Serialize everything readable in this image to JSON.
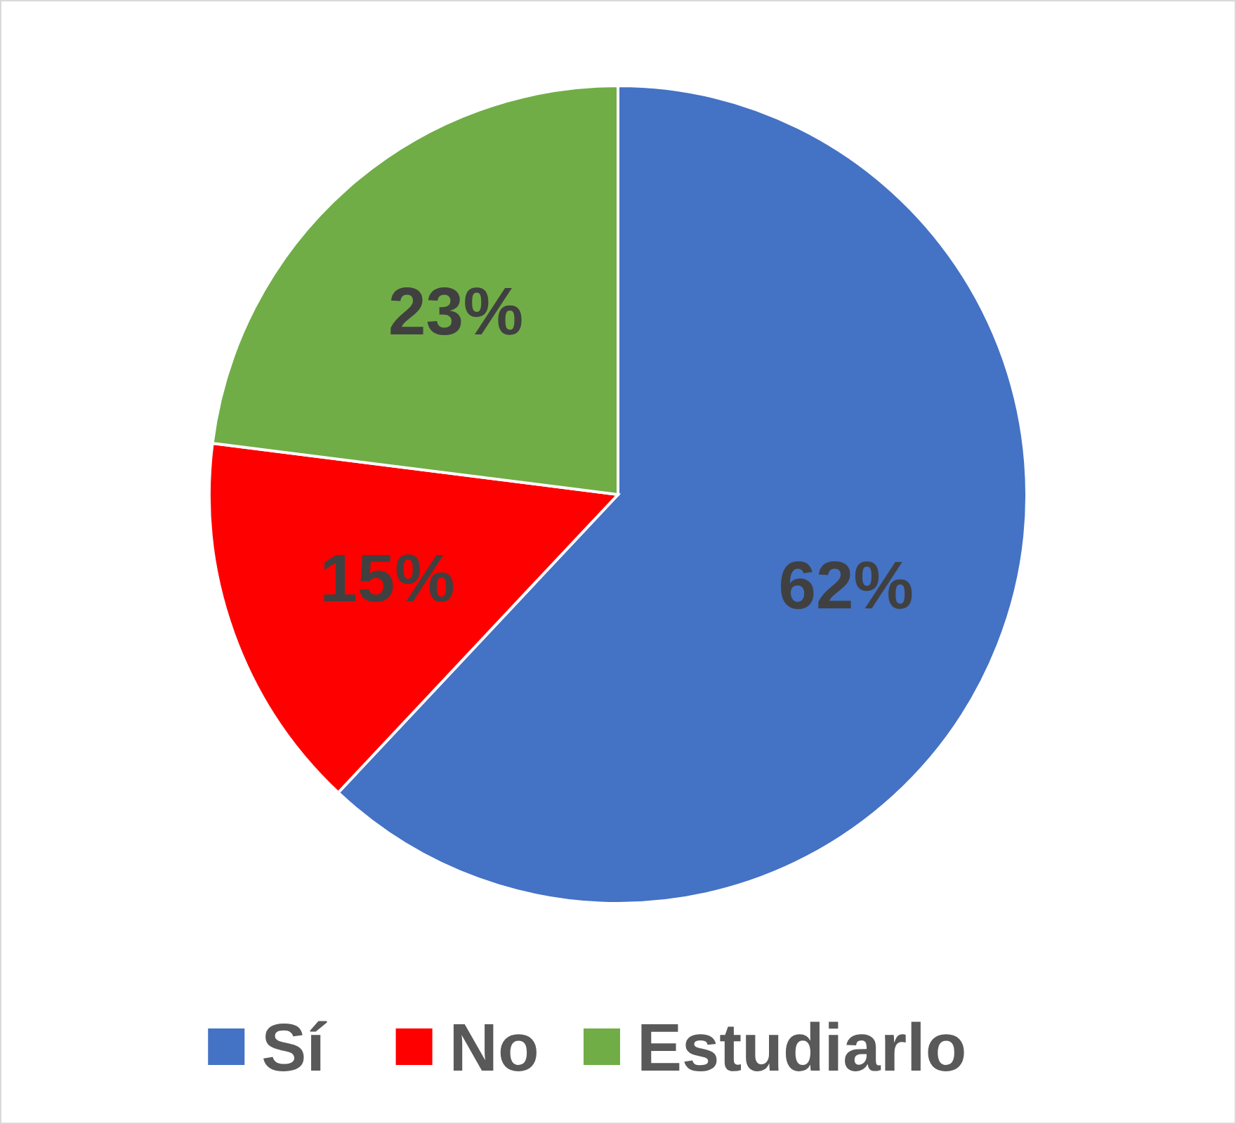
{
  "chart_data": {
    "type": "pie",
    "categories": [
      "Sí",
      "No",
      "Estudiarlo"
    ],
    "values": [
      62,
      15,
      23
    ],
    "colors": [
      "#4472c4",
      "#ff0000",
      "#70ad47"
    ],
    "value_labels": [
      "62%",
      "15%",
      "23%"
    ],
    "legend": "bottom"
  }
}
